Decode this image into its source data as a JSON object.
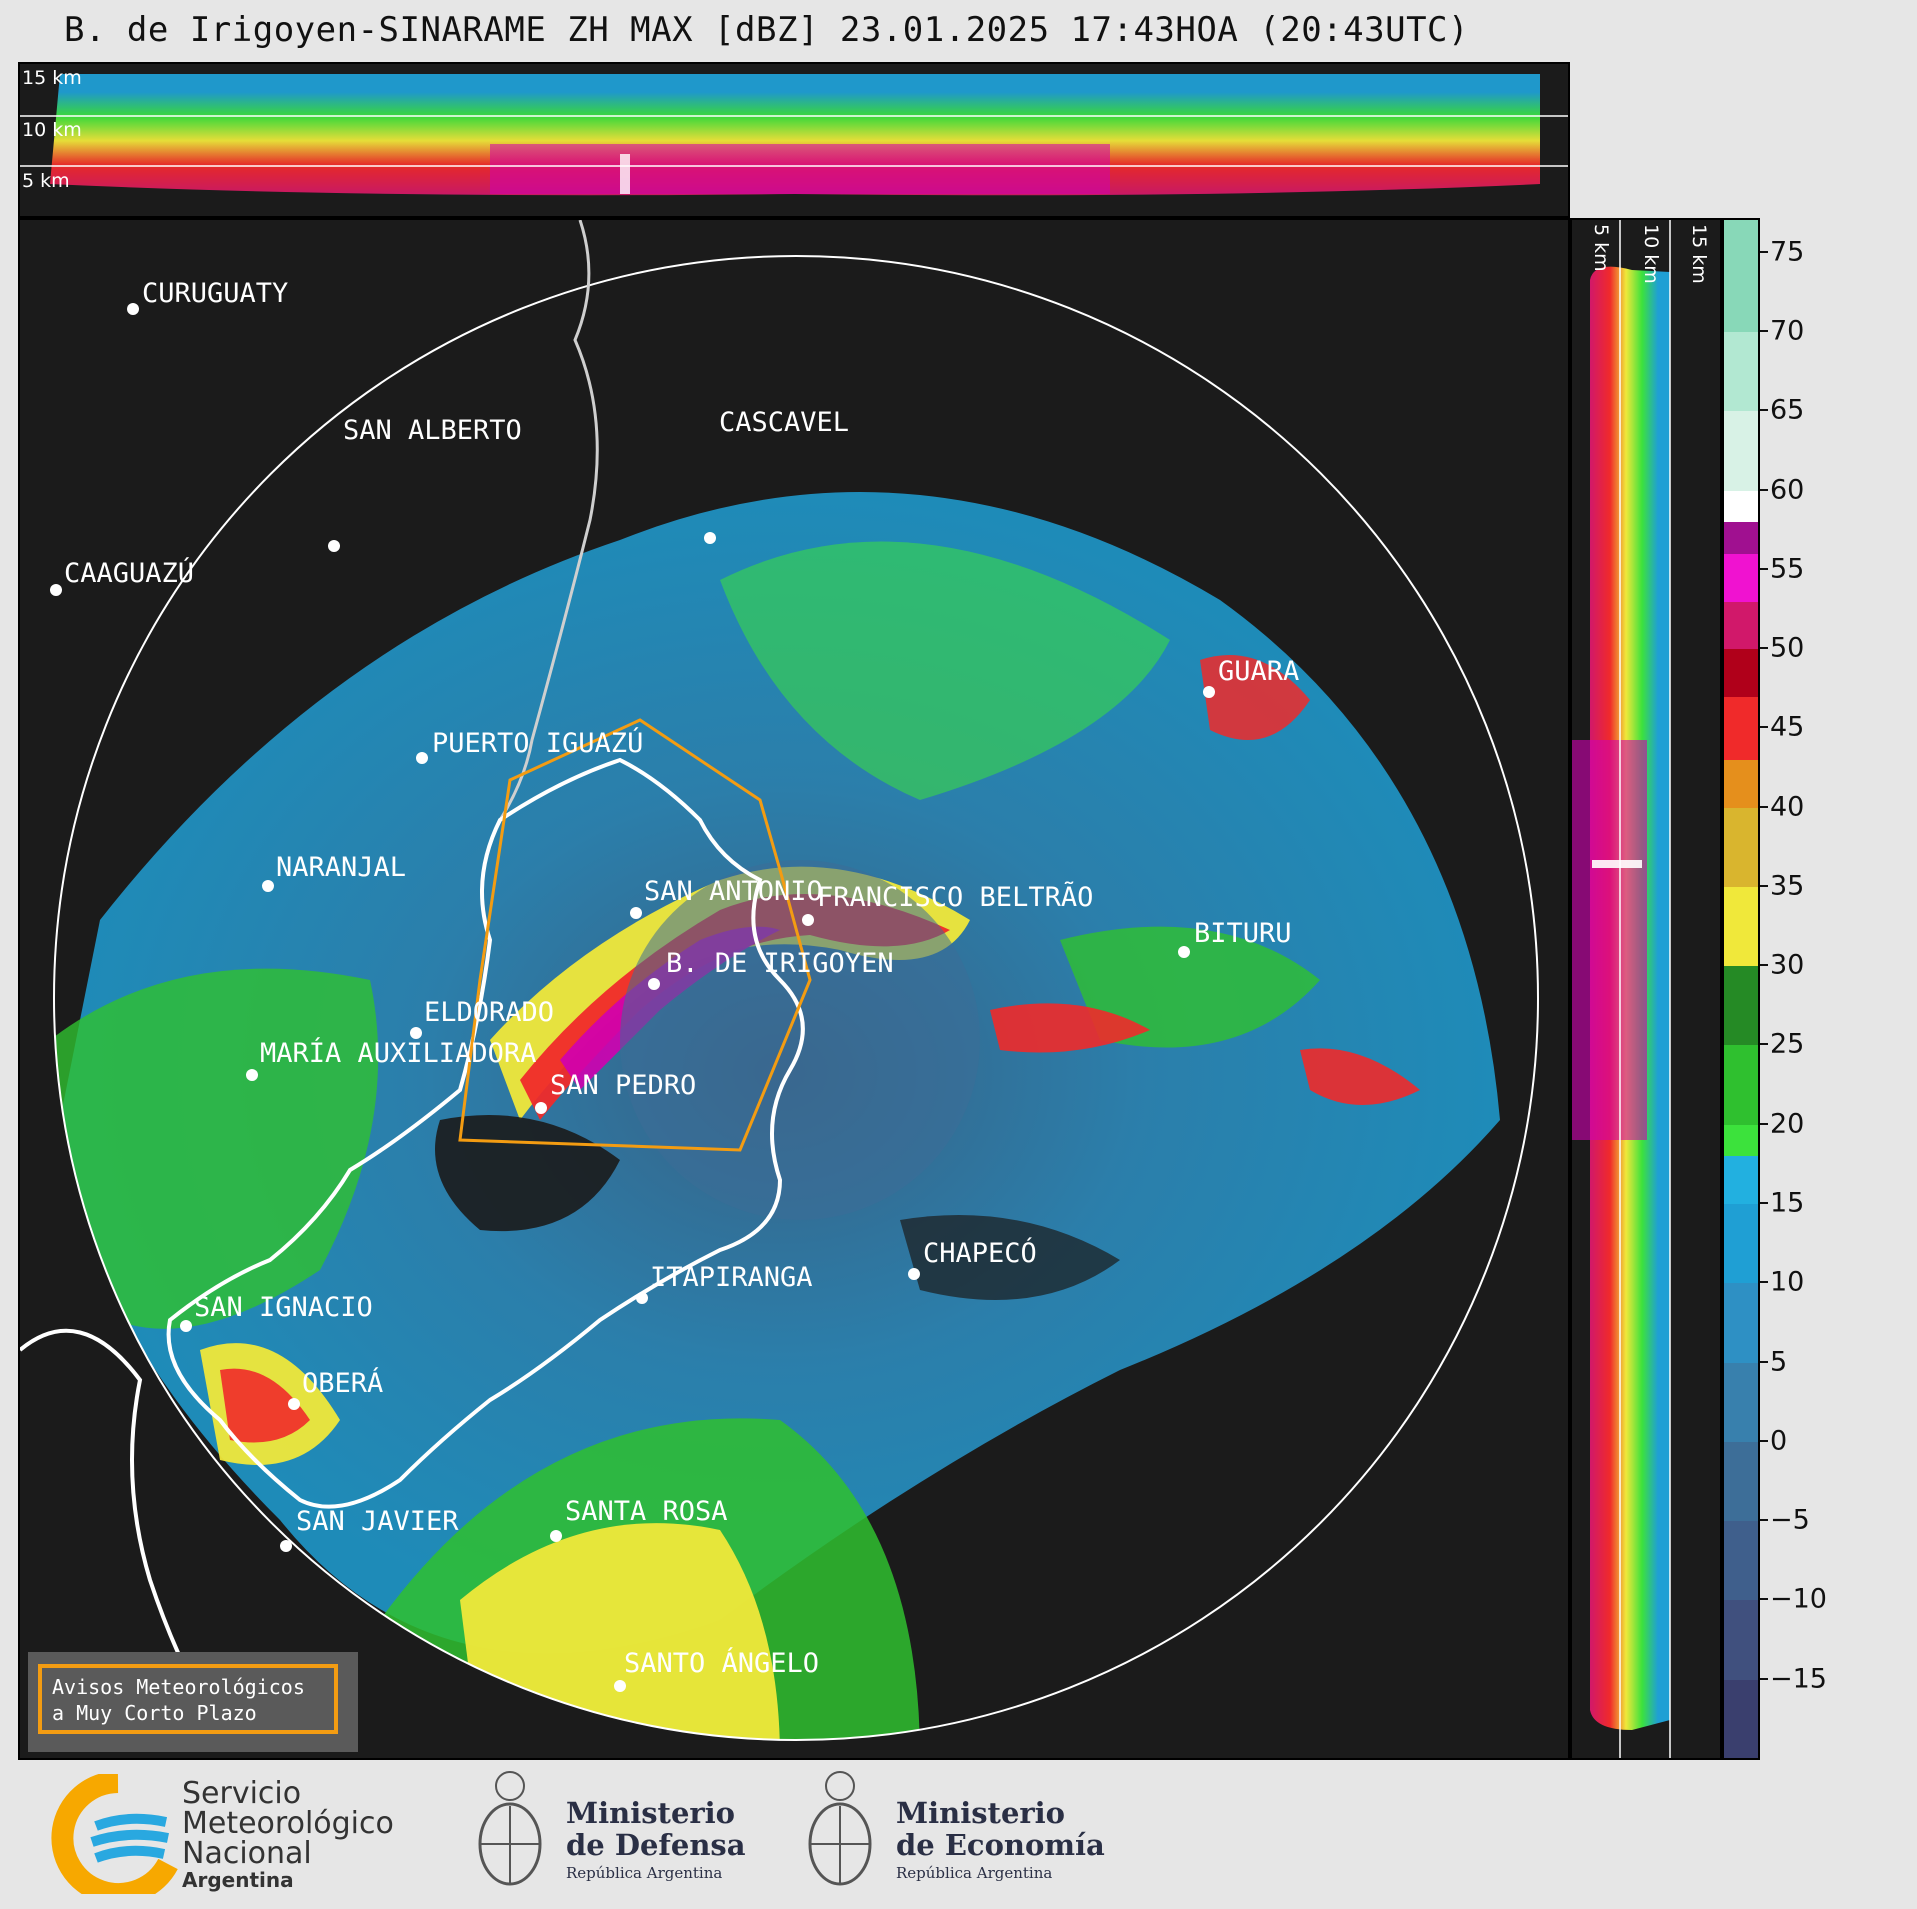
{
  "title": "B. de Irigoyen-SINARAME ZH MAX [dBZ] 23.01.2025 17:43HOA (20:43UTC)",
  "top_panel": {
    "altitudes": [
      "15 km",
      "10 km",
      "5 km"
    ]
  },
  "right_panel": {
    "altitudes": [
      "5 km",
      "10 km",
      "15 km"
    ]
  },
  "colorbar": {
    "unit": "dBZ",
    "ticks": [
      "75",
      "70",
      "65",
      "60",
      "55",
      "50",
      "45",
      "40",
      "35",
      "30",
      "25",
      "20",
      "15",
      "10",
      "5",
      "0",
      "−5",
      "−10",
      "−15"
    ],
    "range": [
      -20,
      77
    ],
    "stops": [
      {
        "from": -20,
        "to": -15,
        "color": "#3a3f6e"
      },
      {
        "from": -15,
        "to": -10,
        "color": "#40507e"
      },
      {
        "from": -10,
        "to": -5,
        "color": "#3f5f8c"
      },
      {
        "from": -5,
        "to": 0,
        "color": "#3d6e98"
      },
      {
        "from": 0,
        "to": 5,
        "color": "#3880ad"
      },
      {
        "from": 5,
        "to": 10,
        "color": "#2e90c4"
      },
      {
        "from": 10,
        "to": 15,
        "color": "#1f9fd4"
      },
      {
        "from": 15,
        "to": 18,
        "color": "#22b0e0"
      },
      {
        "from": 18,
        "to": 20,
        "color": "#3ce23c"
      },
      {
        "from": 20,
        "to": 25,
        "color": "#2fc02f"
      },
      {
        "from": 25,
        "to": 30,
        "color": "#258a25"
      },
      {
        "from": 30,
        "to": 35,
        "color": "#f0e83a"
      },
      {
        "from": 35,
        "to": 40,
        "color": "#d9b52e"
      },
      {
        "from": 40,
        "to": 43,
        "color": "#e58f1c"
      },
      {
        "from": 43,
        "to": 47,
        "color": "#f02a2a"
      },
      {
        "from": 47,
        "to": 50,
        "color": "#b0001a"
      },
      {
        "from": 50,
        "to": 53,
        "color": "#d1186a"
      },
      {
        "from": 53,
        "to": 56,
        "color": "#f012d0"
      },
      {
        "from": 56,
        "to": 58,
        "color": "#a01090"
      },
      {
        "from": 58,
        "to": 60,
        "color": "#ffffff"
      },
      {
        "from": 60,
        "to": 65,
        "color": "#d8f2e6"
      },
      {
        "from": 65,
        "to": 70,
        "color": "#b2e8d2"
      },
      {
        "from": 70,
        "to": 77,
        "color": "#88d8b8"
      }
    ]
  },
  "cities": [
    {
      "name": "CURUGUATY"
    },
    {
      "name": "SAN ALBERTO"
    },
    {
      "name": "CASCAVEL"
    },
    {
      "name": "CAAGUAZÚ"
    },
    {
      "name": "GUARA"
    },
    {
      "name": "PUERTO IGUAZÚ"
    },
    {
      "name": "NARANJAL"
    },
    {
      "name": "SAN ANTONIO"
    },
    {
      "name": "FRANCISCO BELTRÃO"
    },
    {
      "name": "B. DE IRIGOYEN"
    },
    {
      "name": "BITURU"
    },
    {
      "name": "ELDORADO"
    },
    {
      "name": "MARÍA AUXILIADORA"
    },
    {
      "name": "SAN PEDRO"
    },
    {
      "name": "CHAPECÓ"
    },
    {
      "name": "ITAPIRANGA"
    },
    {
      "name": "SAN IGNACIO"
    },
    {
      "name": "OBERÁ"
    },
    {
      "name": "SAN JAVIER"
    },
    {
      "name": "SANTA ROSA"
    },
    {
      "name": "SANTO ÁNGELO"
    }
  ],
  "warning_box": {
    "line1": "Avisos Meteorológicos",
    "line2": "a Muy Corto Plazo",
    "border_color": "#f39c12"
  },
  "footer": {
    "smn": {
      "line1": "Servicio",
      "line2": "Meteorológico",
      "line3": "Nacional",
      "line4": "Argentina"
    },
    "defensa": {
      "line1": "Ministerio",
      "line2": "de Defensa",
      "line3": "República Argentina"
    },
    "economia": {
      "line1": "Ministerio",
      "line2": "de Economía",
      "line3": "República Argentina"
    }
  }
}
